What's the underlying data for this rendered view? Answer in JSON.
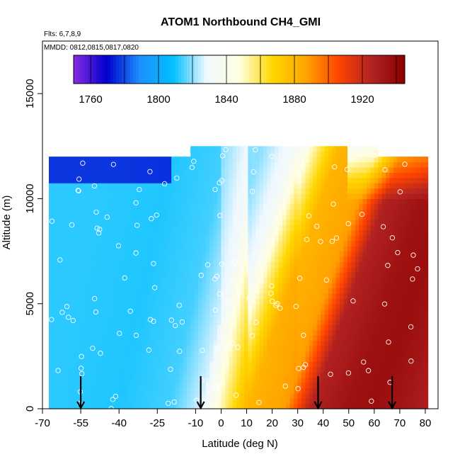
{
  "chart_data": {
    "type": "heatmap",
    "title": "ATOM1 Northbound CH4_GMI",
    "flights_note": "Flts: 6,7,8,9",
    "dates_note": "MMDD: 0812,0815,0817,0820",
    "xlabel": "Latitude (deg N)",
    "ylabel": "Altitude (m)",
    "xlim": [
      -70,
      85
    ],
    "ylim": [
      0,
      17500
    ],
    "x_ticks": [
      -70,
      -55,
      -40,
      -25,
      -10,
      0,
      10,
      20,
      30,
      40,
      50,
      60,
      70,
      80
    ],
    "y_ticks": [
      0,
      5000,
      10000,
      15000
    ],
    "colorbar": {
      "range": [
        1750,
        1945
      ],
      "ticks": [
        1760,
        1800,
        1840,
        1880,
        1920
      ],
      "colors": [
        "#8A2BE2",
        "#0000CD",
        "#1E90FF",
        "#00BFFF",
        "#F0F8FF",
        "#FFFFE0",
        "#FFD700",
        "#FFA500",
        "#FF4500",
        "#B22222",
        "#8B0000"
      ]
    },
    "ch4_at_sea_level": [
      {
        "lat": -67,
        "ch4": 1812
      },
      {
        "lat": -40,
        "ch4": 1811
      },
      {
        "lat": -20,
        "ch4": 1814
      },
      {
        "lat": -8,
        "ch4": 1826
      },
      {
        "lat": 0,
        "ch4": 1852
      },
      {
        "lat": 10,
        "ch4": 1880
      },
      {
        "lat": 25,
        "ch4": 1888
      },
      {
        "lat": 35,
        "ch4": 1926
      },
      {
        "lat": 50,
        "ch4": 1935
      },
      {
        "lat": 60,
        "ch4": 1937
      },
      {
        "lat": 70,
        "ch4": 1933
      },
      {
        "lat": 80,
        "ch4": 1928
      }
    ],
    "profile_latitudes": [
      -55,
      -8,
      38,
      67
    ]
  }
}
